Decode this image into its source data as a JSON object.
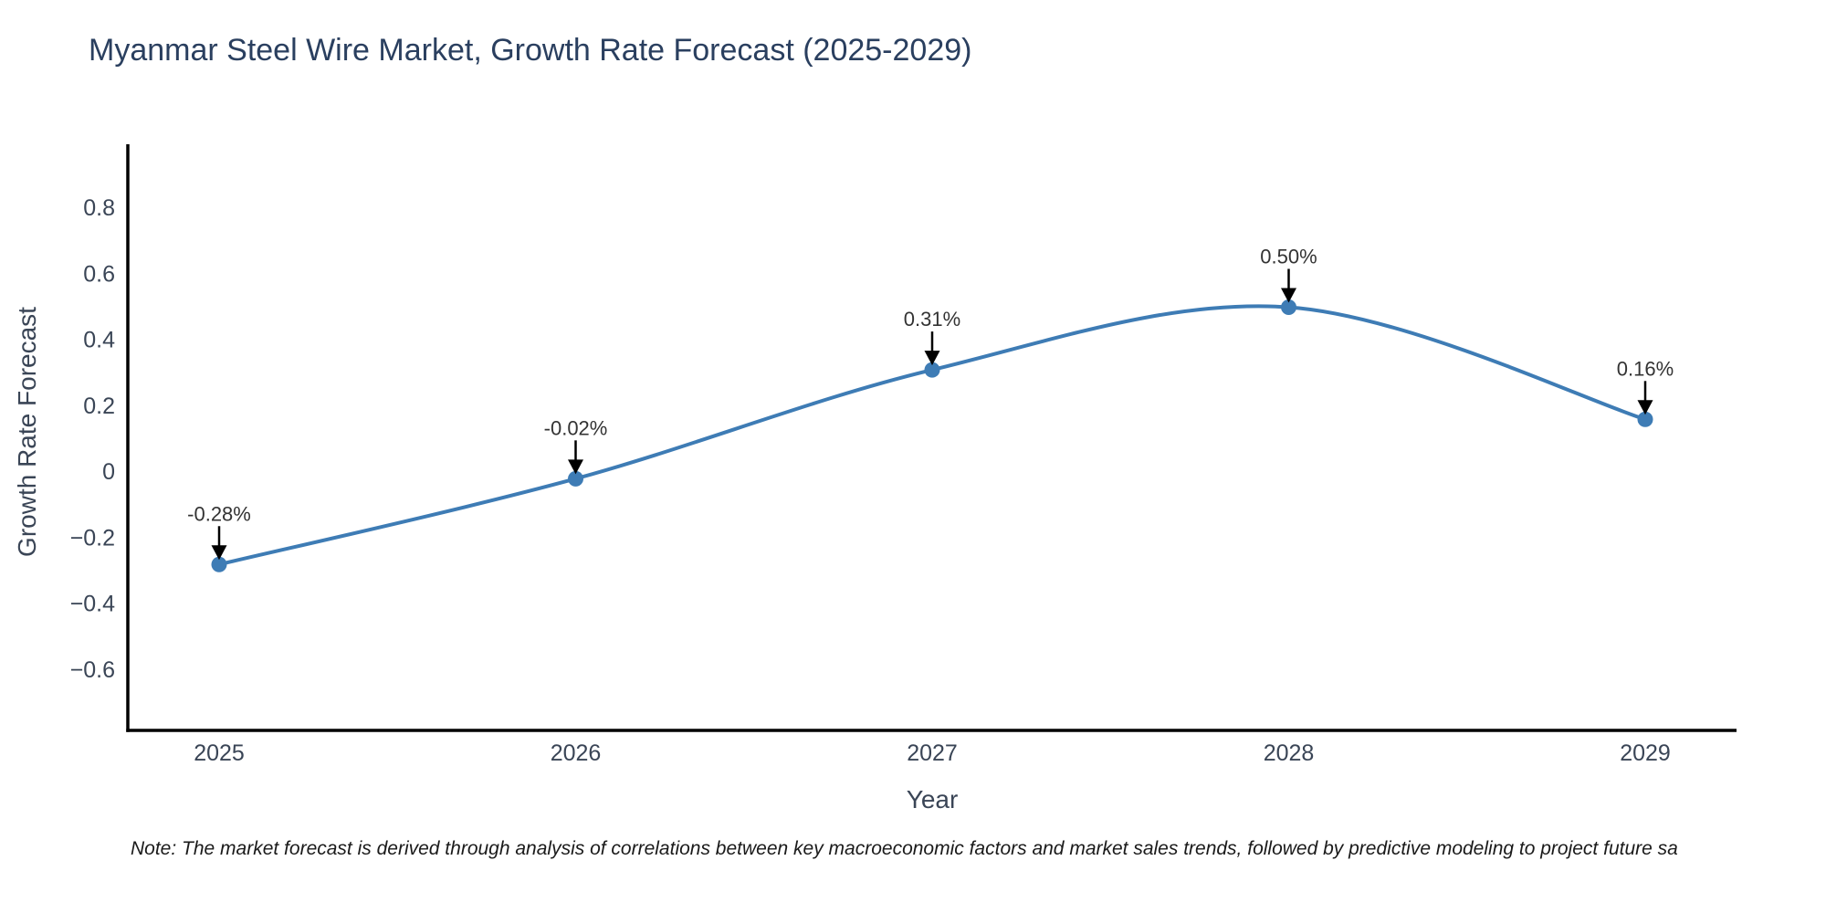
{
  "title": "Myanmar Steel Wire Market, Growth Rate Forecast (2025-2029)",
  "note": "Note: The market forecast is derived through analysis of correlations between key macroeconomic factors and market sales trends, followed by predictive modeling to project future sa",
  "chart_data": {
    "type": "line",
    "line_shape": "spline",
    "categories": [
      "2025",
      "2026",
      "2027",
      "2028",
      "2029"
    ],
    "values": [
      -0.28,
      -0.02,
      0.31,
      0.5,
      0.16
    ],
    "point_labels": [
      "-0.28%",
      "-0.02%",
      "0.31%",
      "0.50%",
      "0.16%"
    ],
    "title": "Myanmar Steel Wire Market, Growth Rate Forecast (2025-2029)",
    "xlabel": "Year",
    "ylabel": "Growth Rate Forecast",
    "yticks": [
      0.8,
      0.6,
      0.4,
      0.2,
      0,
      -0.2,
      -0.4,
      -0.6
    ],
    "ylim": [
      -0.783,
      0.994
    ],
    "grid": false,
    "legend": "none",
    "colors": {
      "line": "#3E7CB5",
      "marker": "#3E7CB5",
      "arrow": "#000000",
      "axis": "#000000",
      "title_text": "#2a3f5f",
      "tick_text": "#3a4556",
      "annotation_text": "#333333",
      "note_text": "#1a1a1a"
    }
  }
}
